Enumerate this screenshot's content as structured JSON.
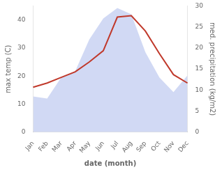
{
  "chart_data": {
    "type": "line",
    "categories": [
      "Jan",
      "Feb",
      "Mar",
      "Apr",
      "May",
      "Jun",
      "Jul",
      "Aug",
      "Sep",
      "Oct",
      "Nov",
      "Dec"
    ],
    "series": [
      {
        "color": "#c0392b",
        "values": [
          16.0,
          17.5,
          19.5,
          21.5,
          25.0,
          29.0,
          41.0,
          41.5,
          36.0,
          28.0,
          20.5,
          17.5
        ]
      },
      {
        "type": "area",
        "axis": "y2",
        "color": "#b8c4ee",
        "values": [
          8.5,
          8.0,
          13.0,
          14.5,
          22.0,
          27.0,
          29.5,
          28.0,
          19.0,
          13.0,
          9.5,
          13.5
        ]
      }
    ],
    "xlabel": "date (month)",
    "ylabel": "max temp (C)",
    "y2label": "med. precipitation (kg/m2)",
    "ylim": [
      0,
      45
    ],
    "yticks": [
      0,
      10,
      20,
      30,
      40
    ],
    "y2lim": [
      0,
      30
    ],
    "y2ticks": [
      0,
      5,
      10,
      15,
      20,
      25,
      30
    ],
    "grid": false
  }
}
